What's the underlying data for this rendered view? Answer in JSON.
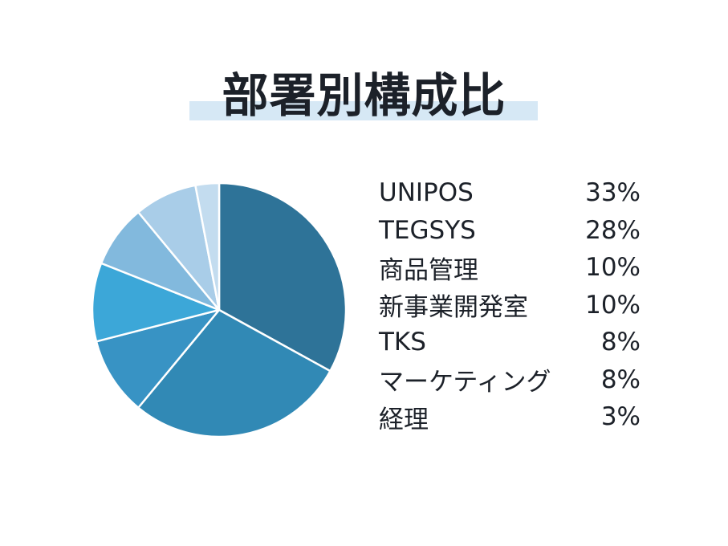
{
  "title": "部署別構成比",
  "chart_data": {
    "type": "pie",
    "title": "部署別構成比",
    "categories": [
      "UNIPOS",
      "TEGSYS",
      "商品管理",
      "新事業開発室",
      "TKS",
      "マーケティング",
      "経理"
    ],
    "values": [
      33,
      28,
      10,
      10,
      8,
      8,
      3
    ],
    "value_labels": [
      "33%",
      "28%",
      "10%",
      "10%",
      "8%",
      "8%",
      "3%"
    ],
    "unit": "%",
    "colors": [
      "#2e7398",
      "#3189b5",
      "#3893c4",
      "#3ca7d8",
      "#82b9dd",
      "#a9cde8",
      "#c3dcef"
    ],
    "legend_placement": "right",
    "start_angle": "top (12 o'clock)",
    "direction": "clockwise"
  }
}
